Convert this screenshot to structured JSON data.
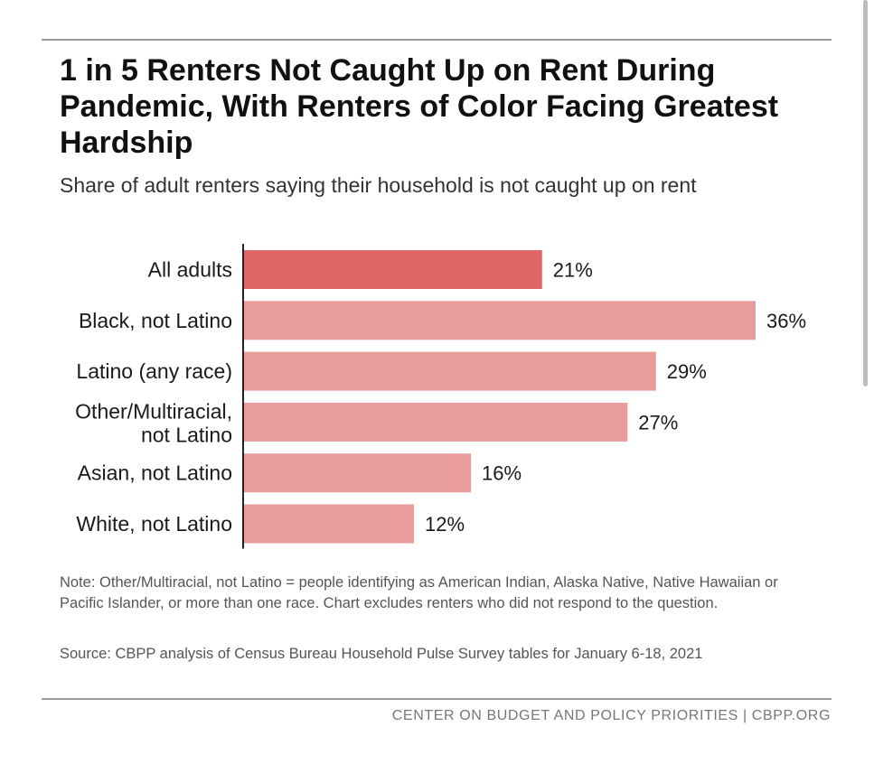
{
  "title": "1 in 5 Renters Not Caught Up on Rent During Pandemic, With Renters of Color Facing Greatest Hardship",
  "subtitle": "Share of adult renters saying their household is not caught up on rent",
  "note": "Note: Other/Multiracial, not Latino = people identifying as American Indian, Alaska Native, Native Hawaiian or Pacific Islander, or more than one race. Chart excludes renters who did not respond to the question.",
  "source": "Source: CBPP analysis of Census Bureau Household Pulse Survey tables for January 6-18, 2021",
  "footer": "CENTER ON BUDGET AND POLICY PRIORITIES | CBPP.ORG",
  "colors": {
    "highlight": "#e06666",
    "bar": "#e89c9c",
    "text": "#1a1a1a"
  },
  "chart_data": {
    "type": "bar",
    "orientation": "horizontal",
    "categories": [
      [
        "All adults"
      ],
      [
        "Black, not Latino"
      ],
      [
        "Latino (any race)"
      ],
      [
        "Other/Multiracial,",
        "not Latino"
      ],
      [
        "Asian, not Latino"
      ],
      [
        "White, not Latino"
      ]
    ],
    "values": [
      21,
      36,
      29,
      27,
      16,
      12
    ],
    "data_labels": [
      "21%",
      "36%",
      "29%",
      "27%",
      "16%",
      "12%"
    ],
    "highlighted_index": 0,
    "xlim": [
      0,
      36
    ],
    "unit": "%",
    "grid": false
  }
}
